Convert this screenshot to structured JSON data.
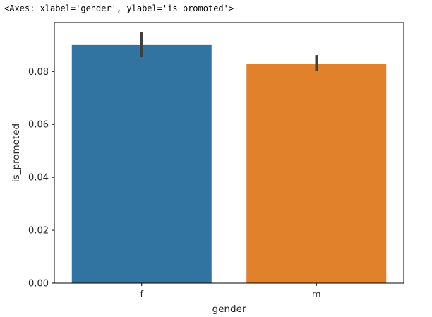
{
  "output_header": "<Axes: xlabel='gender', ylabel='is_promoted'>",
  "chart_data": {
    "type": "bar",
    "categories": [
      "f",
      "m"
    ],
    "values": [
      0.09,
      0.083
    ],
    "error_bars": [
      {
        "low": 0.0854,
        "high": 0.0948
      },
      {
        "low": 0.0802,
        "high": 0.0862
      }
    ],
    "colors": [
      "#3274a1",
      "#e1812c"
    ],
    "error_color": "#3f3f3f",
    "title": "",
    "xlabel": "gender",
    "ylabel": "is_promoted",
    "ylim": [
      0,
      0.0985
    ],
    "yticks": [
      0.0,
      0.02,
      0.04,
      0.06,
      0.08
    ],
    "ytick_labels": [
      "0.00",
      "0.02",
      "0.04",
      "0.06",
      "0.08"
    ],
    "grid": false,
    "legend": "none"
  }
}
